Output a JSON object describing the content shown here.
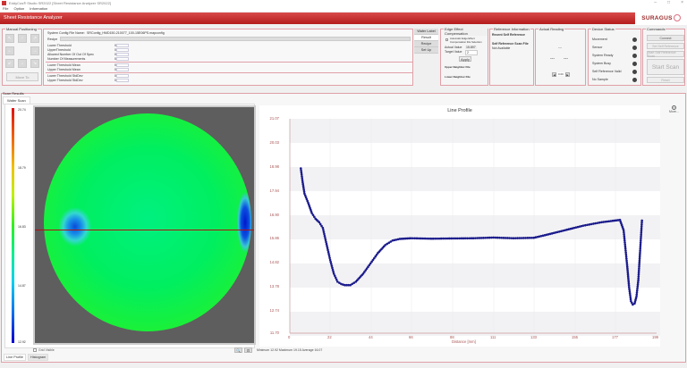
{
  "window": {
    "title": "EddyCus® Studio SR2022 [Sheet Resistance Analyzer SR2022]",
    "controls": [
      "–",
      "□",
      "×"
    ]
  },
  "menu": [
    "File",
    "Option",
    "Information"
  ],
  "header": {
    "title": "Sheet Resistance Analyzer",
    "logo": "SURAGUS"
  },
  "manual_positioning": {
    "title": "Manual Positioning",
    "arrows": [
      "↖",
      "↑",
      "↗",
      "←",
      "→",
      "↙",
      "↓",
      "↘"
    ],
    "move_to": "Move To"
  },
  "config": {
    "file_label": "System Config File Name:",
    "file_value": "SRConfig_HMD150-210077_100-15E06PS.mapconfig",
    "recipe_label": "Recipe",
    "rows": [
      {
        "label": "Lower Threshold",
        "value": "0"
      },
      {
        "label": "UpperThreshold",
        "value": "0"
      },
      {
        "label": "Allowed Number Of Out Of Spec",
        "value": "0"
      },
      {
        "label": "Number Of Measurements",
        "value": "0"
      },
      {
        "label": "Lower Threshold Mean",
        "value": "0"
      },
      {
        "label": "Upper Threshold Mean",
        "value": "0"
      },
      {
        "label": "Lower Threshold StdDev",
        "value": "0"
      },
      {
        "label": "Upper Threshold StdDev",
        "value": "0"
      }
    ]
  },
  "side_tabs": [
    "Wafer Label",
    "Result",
    "Recipe",
    "Set Up"
  ],
  "edge_effect": {
    "title": "Edge Effect Compensation",
    "checkbox_label": "Automatic Edge Effect Compensation File Selection",
    "actual_label": "Actual Value",
    "actual_value": "15.897",
    "target_label": "Target Value",
    "target_value": "2",
    "apply": "Apply",
    "upper_file": "Upper Neighbor File",
    "lower_file": "Lower Neighbor File"
  },
  "reference": {
    "title": "Reference Information",
    "recent": "Recent Self Reference",
    "scan_file": "Self Reference Scan File",
    "scan_status": "Not Available"
  },
  "actual_reading": {
    "title": "Actual Reading",
    "value_top": "---",
    "value_left": "---",
    "value_right": "---",
    "nav_value": "0.00"
  },
  "device_status": {
    "title": "Device Status",
    "items": [
      "Movement",
      "Sensor",
      "System Ready",
      "System Busy",
      "Self Reference Valid",
      "No Sample"
    ]
  },
  "commands": {
    "title": "Commands",
    "connect": "Connect",
    "set_self_ref": "Set Self Reference",
    "start_self_ref_scan": "Start Self Reference Scan",
    "start_scan": "Start Scan",
    "reset": "Reset"
  },
  "scan_results": {
    "title": "Scan Results",
    "tab": "Wafer Scan",
    "colorbar_labels": [
      "20.74",
      "18.79",
      "16.83",
      "14.87",
      "12.92"
    ],
    "grid_visible": "Grid Visible",
    "stats": "Minimum 12.92  Maximum 19.15  Average 16.07",
    "bottom_tabs": [
      "Line Profile",
      "Histogram"
    ],
    "more": "More..."
  },
  "chart_data": {
    "type": "line",
    "title": "Line Profile",
    "xlabel": "Distance [mm]",
    "ylabel": "",
    "xlim": [
      0,
      199
    ],
    "ylim": [
      11.7,
      21.07
    ],
    "x_ticks": [
      "0",
      "22",
      "44",
      "66",
      "88",
      "111",
      "133",
      "155",
      "177",
      "199"
    ],
    "y_ticks": [
      "21.07",
      "20.03",
      "18.98",
      "17.94",
      "16.90",
      "15.86",
      "14.82",
      "13.78",
      "12.74",
      "11.70"
    ],
    "x": [
      6,
      7,
      8,
      10,
      12,
      14,
      16,
      18,
      20,
      22,
      24,
      26,
      28,
      30,
      33,
      36,
      40,
      44,
      48,
      52,
      56,
      60,
      66,
      77,
      88,
      100,
      111,
      122,
      133,
      140,
      150,
      160,
      170,
      177,
      180,
      182,
      183,
      184,
      185,
      186,
      187,
      188,
      189,
      190,
      191,
      192
    ],
    "y": [
      18.9,
      18.3,
      17.8,
      17.4,
      16.95,
      16.7,
      16.55,
      16.3,
      15.6,
      14.9,
      14.3,
      13.95,
      13.85,
      13.8,
      13.8,
      13.95,
      14.3,
      14.75,
      15.2,
      15.55,
      15.75,
      15.82,
      15.85,
      15.83,
      15.84,
      15.85,
      15.88,
      15.85,
      15.87,
      16.0,
      16.2,
      16.4,
      16.55,
      16.62,
      16.65,
      16.2,
      15.4,
      14.6,
      13.7,
      13.1,
      12.95,
      13.0,
      13.3,
      14.0,
      15.3,
      16.62
    ],
    "series": [
      {
        "name": "Line Profile",
        "color": "#1a1a8c"
      }
    ],
    "grid": true
  },
  "colors": {
    "accent": "#c0282a",
    "panel_border": "#e0a0a8",
    "line": "#1a1a8c",
    "axis_text": "#aa5555"
  }
}
